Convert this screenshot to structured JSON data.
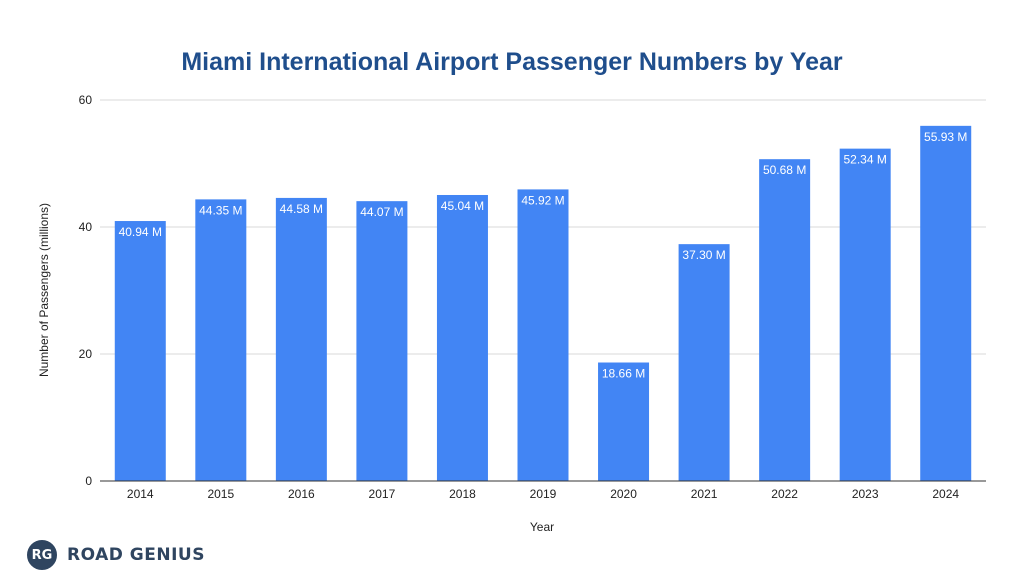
{
  "chart_data": {
    "type": "bar",
    "title": "Miami International Airport Passenger Numbers by Year",
    "xlabel": "Year",
    "ylabel": "Number of Passengers (millions)",
    "ylim": [
      0,
      60
    ],
    "yticks": [
      "0",
      "20",
      "40",
      "60"
    ],
    "grid": true,
    "categories": [
      "2014",
      "2015",
      "2016",
      "2017",
      "2018",
      "2019",
      "2020",
      "2021",
      "2022",
      "2023",
      "2024"
    ],
    "values": [
      40.94,
      44.35,
      44.58,
      44.07,
      45.04,
      45.92,
      18.66,
      37.3,
      50.68,
      52.34,
      55.93
    ],
    "data_labels": [
      "40.94 M",
      "44.35 M",
      "44.58 M",
      "44.07 M",
      "45.04 M",
      "45.92 M",
      "18.66 M",
      "37.30 M",
      "50.68 M",
      "52.34 M",
      "55.93 M"
    ],
    "bar_color": "#4285f4"
  },
  "brand": {
    "badge": "RG",
    "name": "ROAD GENIUS",
    "color": "#2f4560"
  }
}
